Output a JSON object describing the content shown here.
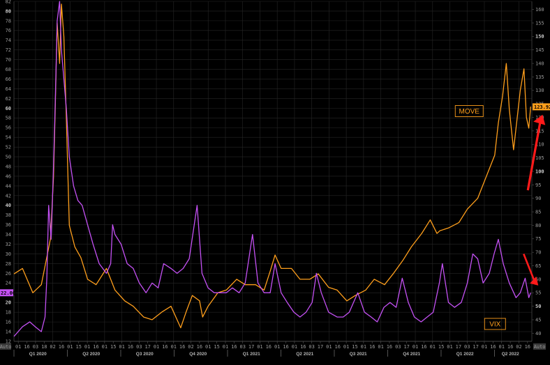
{
  "chart_data": {
    "type": "line",
    "title": "",
    "xlabel": "",
    "grid": true,
    "colors": {
      "background": "#000000",
      "grid": "#262626",
      "move": "#ff9f1c",
      "vix": "#c451f4",
      "arrow": "#ff1a1a",
      "axis_text": "#9a9a9a"
    },
    "left_axis": {
      "ylim": [
        12,
        82
      ],
      "ticks": [
        "12",
        "14",
        "16",
        "18",
        "20",
        "22",
        "24",
        "26",
        "28",
        "30",
        "32",
        "34",
        "36",
        "38",
        "40",
        "42",
        "44",
        "46",
        "48",
        "50",
        "52",
        "54",
        "56",
        "58",
        "60",
        "62",
        "64",
        "66",
        "68",
        "70",
        "72",
        "74",
        "76",
        "78",
        "80",
        "82"
      ],
      "bold_ticks": [
        "20",
        "40",
        "60",
        "80"
      ],
      "last_value_label": "22.00",
      "auto_label": "Auto"
    },
    "right_axis": {
      "ylim": [
        37,
        163
      ],
      "ticks": [
        "40",
        "45",
        "50",
        "55",
        "60",
        "65",
        "70",
        "75",
        "80",
        "85",
        "90",
        "95",
        "100",
        "105",
        "110",
        "115",
        "120",
        "125",
        "130",
        "135",
        "140",
        "145",
        "150",
        "155",
        "160"
      ],
      "bold_ticks": [
        "50",
        "100",
        "150"
      ],
      "last_value_label": "123.92",
      "auto_label": "Auto"
    },
    "x_axis": {
      "range": [
        "2020-01-01",
        "2022-05-01"
      ],
      "day_ticks": [
        "01",
        "16",
        "03",
        "18",
        "02",
        "16",
        "01",
        "15",
        "01",
        "16",
        "01",
        "15",
        "01",
        "16",
        "03",
        "17",
        "01",
        "16",
        "01",
        "16",
        "02",
        "16",
        "01",
        "15",
        "01",
        "16",
        "03",
        "17",
        "01",
        "16",
        "01",
        "16",
        "01",
        "16",
        "03",
        "17",
        "01",
        "16",
        "01",
        "15",
        "01",
        "16",
        "01",
        "16",
        "03",
        "17",
        "01",
        "16",
        "01",
        "15",
        "01",
        "17",
        "03",
        "17",
        "01",
        "16",
        "01",
        "16",
        "02",
        "16"
      ],
      "quarters": [
        "Q1 2020",
        "Q2 2020",
        "Q3 2020",
        "Q4 2020",
        "Q1 2021",
        "Q2 2021",
        "Q3 2021",
        "Q4 2021",
        "Q1 2022",
        "Q2 2022"
      ]
    },
    "series": [
      {
        "name": "MOVE",
        "axis": "right",
        "x": [
          "2020-01-01",
          "2020-01-15",
          "2020-02-01",
          "2020-02-15",
          "2020-03-01",
          "2020-03-06",
          "2020-03-09",
          "2020-03-12",
          "2020-03-16",
          "2020-03-19",
          "2020-03-23",
          "2020-03-27",
          "2020-04-01",
          "2020-04-10",
          "2020-04-20",
          "2020-05-01",
          "2020-05-15",
          "2020-06-01",
          "2020-06-15",
          "2020-07-01",
          "2020-07-15",
          "2020-08-01",
          "2020-08-15",
          "2020-09-01",
          "2020-09-15",
          "2020-10-01",
          "2020-10-10",
          "2020-10-20",
          "2020-11-01",
          "2020-11-06",
          "2020-11-15",
          "2020-12-01",
          "2020-12-15",
          "2021-01-01",
          "2021-01-15",
          "2021-02-01",
          "2021-02-15",
          "2021-02-25",
          "2021-03-05",
          "2021-03-15",
          "2021-04-01",
          "2021-04-15",
          "2021-05-01",
          "2021-05-15",
          "2021-06-01",
          "2021-06-15",
          "2021-07-01",
          "2021-07-15",
          "2021-08-01",
          "2021-08-15",
          "2021-09-01",
          "2021-09-15",
          "2021-10-01",
          "2021-10-15",
          "2021-11-01",
          "2021-11-15",
          "2021-11-26",
          "2021-12-01",
          "2021-12-15",
          "2022-01-01",
          "2022-01-15",
          "2022-02-01",
          "2022-02-15",
          "2022-03-01",
          "2022-03-07",
          "2022-03-14",
          "2022-03-20",
          "2022-03-25",
          "2022-04-01",
          "2022-04-06",
          "2022-04-12",
          "2022-04-18",
          "2022-04-22",
          "2022-04-26",
          "2022-04-29"
        ],
        "values": [
          62,
          64,
          55,
          58,
          75,
          98,
          125,
          155,
          140,
          162,
          150,
          120,
          80,
          72,
          68,
          60,
          58,
          64,
          56,
          52,
          50,
          46,
          45,
          48,
          50,
          42,
          48,
          54,
          52,
          46,
          50,
          55,
          56,
          60,
          58,
          58,
          56,
          63,
          69,
          64,
          64,
          60,
          60,
          62,
          57,
          56,
          52,
          54,
          56,
          60,
          58,
          62,
          67,
          72,
          77,
          82,
          77,
          78,
          79,
          81,
          86,
          90,
          98,
          106,
          118,
          128,
          140,
          123,
          108,
          118,
          130,
          138,
          120,
          116,
          124
        ]
      },
      {
        "name": "VIX",
        "axis": "left",
        "x": [
          "2020-01-01",
          "2020-01-15",
          "2020-01-27",
          "2020-02-05",
          "2020-02-15",
          "2020-02-21",
          "2020-02-24",
          "2020-02-27",
          "2020-03-02",
          "2020-03-06",
          "2020-03-09",
          "2020-03-12",
          "2020-03-16",
          "2020-03-19",
          "2020-03-23",
          "2020-03-27",
          "2020-04-01",
          "2020-04-08",
          "2020-04-15",
          "2020-04-22",
          "2020-05-01",
          "2020-05-10",
          "2020-05-20",
          "2020-06-01",
          "2020-06-08",
          "2020-06-11",
          "2020-06-15",
          "2020-06-25",
          "2020-07-05",
          "2020-07-15",
          "2020-07-25",
          "2020-08-05",
          "2020-08-15",
          "2020-08-25",
          "2020-09-03",
          "2020-09-15",
          "2020-09-25",
          "2020-10-05",
          "2020-10-15",
          "2020-10-28",
          "2020-11-05",
          "2020-11-15",
          "2020-11-25",
          "2020-12-05",
          "2020-12-15",
          "2020-12-25",
          "2021-01-05",
          "2021-01-15",
          "2021-01-27",
          "2021-02-05",
          "2021-02-15",
          "2021-02-25",
          "2021-03-05",
          "2021-03-15",
          "2021-03-25",
          "2021-04-05",
          "2021-04-15",
          "2021-04-25",
          "2021-05-05",
          "2021-05-12",
          "2021-05-20",
          "2021-06-01",
          "2021-06-15",
          "2021-06-25",
          "2021-07-05",
          "2021-07-19",
          "2021-07-30",
          "2021-08-10",
          "2021-08-20",
          "2021-08-31",
          "2021-09-10",
          "2021-09-20",
          "2021-09-30",
          "2021-10-10",
          "2021-10-20",
          "2021-10-31",
          "2021-11-10",
          "2021-11-20",
          "2021-11-30",
          "2021-12-05",
          "2021-12-15",
          "2021-12-25",
          "2022-01-05",
          "2022-01-15",
          "2022-01-24",
          "2022-02-01",
          "2022-02-10",
          "2022-02-20",
          "2022-02-28",
          "2022-03-07",
          "2022-03-15",
          "2022-03-25",
          "2022-04-05",
          "2022-04-12",
          "2022-04-20",
          "2022-04-26",
          "2022-04-29"
        ],
        "values": [
          13,
          15,
          16,
          15,
          14,
          17,
          25,
          40,
          33,
          48,
          62,
          78,
          82,
          72,
          66,
          60,
          50,
          44,
          41,
          40,
          36,
          32,
          28,
          26,
          28,
          36,
          34,
          32,
          28,
          27,
          24,
          22,
          24,
          23,
          28,
          27,
          26,
          27,
          29,
          40,
          26,
          23,
          22,
          22,
          22,
          23,
          22,
          24,
          34,
          24,
          22,
          22,
          28,
          22,
          20,
          18,
          17,
          18,
          20,
          26,
          22,
          18,
          17,
          17,
          18,
          22,
          18,
          17,
          16,
          19,
          20,
          19,
          25,
          20,
          17,
          16,
          17,
          18,
          24,
          28,
          20,
          19,
          20,
          24,
          30,
          29,
          24,
          26,
          30,
          33,
          28,
          24,
          21,
          22,
          25,
          21,
          22
        ]
      }
    ],
    "annotations": [
      {
        "text": "MOVE",
        "type": "legend-box"
      },
      {
        "text": "VIX",
        "type": "legend-box"
      },
      {
        "type": "arrow",
        "direction": "up",
        "color": "#ff1a1a"
      },
      {
        "type": "arrow",
        "direction": "down",
        "color": "#ff1a1a"
      }
    ]
  }
}
